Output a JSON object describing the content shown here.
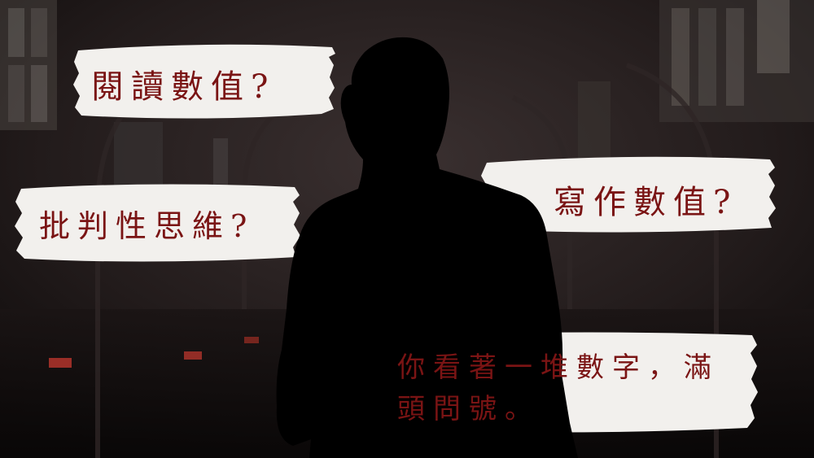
{
  "labels": {
    "reading": "閱讀數值?",
    "critical": "批判性思維?",
    "writing": "寫作數值?",
    "caption_line1": "你看著一堆數字，滿",
    "caption_line2": "頭問號。"
  },
  "colors": {
    "text": "#7a1414",
    "brush": "#f2f0ed",
    "silhouette": "#000000",
    "background": "#1a1515"
  }
}
